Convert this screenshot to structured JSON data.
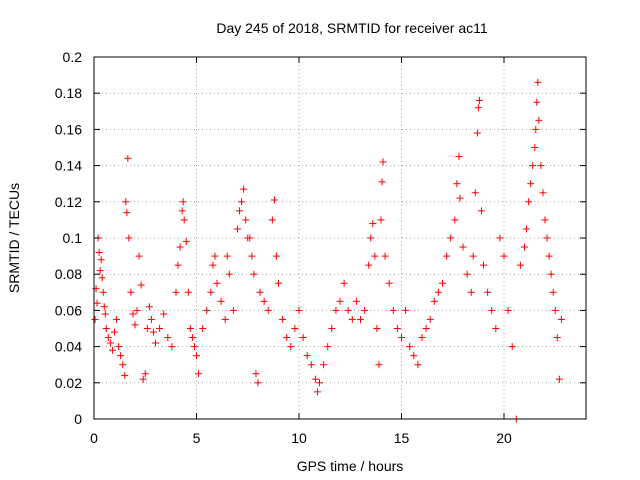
{
  "chart_data": {
    "type": "scatter",
    "title": "Day 245 of 2018, SRMTID for receiver ac11",
    "xlabel": "GPS time / hours",
    "ylabel": "SRMTID / TECUs",
    "xlim": [
      0,
      24
    ],
    "ylim": [
      0,
      0.2
    ],
    "x_ticks": [
      0,
      5,
      10,
      15,
      20
    ],
    "x_tick_labels": [
      "0",
      "5",
      "10",
      "15",
      "20"
    ],
    "y_ticks": [
      0,
      0.02,
      0.04,
      0.06,
      0.08,
      0.1,
      0.12,
      0.14,
      0.16,
      0.18,
      0.2
    ],
    "y_tick_labels": [
      "0",
      "0.02",
      "0.04",
      "0.06",
      "0.08",
      "0.1",
      "0.12",
      "0.14",
      "0.16",
      "0.18",
      "0.2"
    ],
    "grid": true,
    "marker": "plus",
    "marker_color": "#ff0000",
    "series": [
      {
        "name": "SRMTID",
        "points": [
          [
            0.05,
            0.055
          ],
          [
            0.1,
            0.072
          ],
          [
            0.15,
            0.064
          ],
          [
            0.2,
            0.1
          ],
          [
            0.25,
            0.092
          ],
          [
            0.3,
            0.082
          ],
          [
            0.35,
            0.088
          ],
          [
            0.4,
            0.078
          ],
          [
            0.45,
            0.07
          ],
          [
            0.5,
            0.062
          ],
          [
            0.55,
            0.058
          ],
          [
            0.6,
            0.05
          ],
          [
            0.7,
            0.045
          ],
          [
            0.8,
            0.042
          ],
          [
            0.9,
            0.038
          ],
          [
            1.0,
            0.048
          ],
          [
            1.1,
            0.055
          ],
          [
            1.2,
            0.04
          ],
          [
            1.3,
            0.035
          ],
          [
            1.4,
            0.03
          ],
          [
            1.5,
            0.024
          ],
          [
            1.55,
            0.12
          ],
          [
            1.6,
            0.114
          ],
          [
            1.65,
            0.144
          ],
          [
            1.7,
            0.1
          ],
          [
            1.8,
            0.07
          ],
          [
            1.9,
            0.058
          ],
          [
            2.0,
            0.052
          ],
          [
            2.1,
            0.06
          ],
          [
            2.2,
            0.09
          ],
          [
            2.3,
            0.074
          ],
          [
            2.4,
            0.022
          ],
          [
            2.5,
            0.025
          ],
          [
            2.6,
            0.05
          ],
          [
            2.7,
            0.062
          ],
          [
            2.8,
            0.055
          ],
          [
            2.9,
            0.048
          ],
          [
            3.0,
            0.042
          ],
          [
            3.2,
            0.05
          ],
          [
            3.4,
            0.058
          ],
          [
            3.6,
            0.045
          ],
          [
            3.8,
            0.04
          ],
          [
            4.0,
            0.07
          ],
          [
            4.1,
            0.085
          ],
          [
            4.2,
            0.095
          ],
          [
            4.3,
            0.115
          ],
          [
            4.35,
            0.12
          ],
          [
            4.4,
            0.11
          ],
          [
            4.5,
            0.098
          ],
          [
            4.6,
            0.07
          ],
          [
            4.7,
            0.05
          ],
          [
            4.8,
            0.045
          ],
          [
            4.9,
            0.04
          ],
          [
            5.0,
            0.035
          ],
          [
            5.1,
            0.025
          ],
          [
            5.3,
            0.05
          ],
          [
            5.5,
            0.06
          ],
          [
            5.7,
            0.07
          ],
          [
            5.8,
            0.085
          ],
          [
            5.9,
            0.09
          ],
          [
            6.0,
            0.075
          ],
          [
            6.2,
            0.065
          ],
          [
            6.4,
            0.055
          ],
          [
            6.5,
            0.09
          ],
          [
            6.6,
            0.08
          ],
          [
            6.8,
            0.06
          ],
          [
            7.0,
            0.105
          ],
          [
            7.1,
            0.115
          ],
          [
            7.2,
            0.12
          ],
          [
            7.3,
            0.127
          ],
          [
            7.4,
            0.11
          ],
          [
            7.5,
            0.1
          ],
          [
            7.6,
            0.1
          ],
          [
            7.7,
            0.09
          ],
          [
            7.8,
            0.08
          ],
          [
            7.9,
            0.025
          ],
          [
            8.0,
            0.02
          ],
          [
            8.1,
            0.07
          ],
          [
            8.3,
            0.065
          ],
          [
            8.5,
            0.06
          ],
          [
            8.7,
            0.11
          ],
          [
            8.8,
            0.121
          ],
          [
            8.9,
            0.09
          ],
          [
            9.0,
            0.075
          ],
          [
            9.2,
            0.055
          ],
          [
            9.4,
            0.045
          ],
          [
            9.6,
            0.04
          ],
          [
            9.8,
            0.05
          ],
          [
            10.0,
            0.06
          ],
          [
            10.2,
            0.045
          ],
          [
            10.4,
            0.035
          ],
          [
            10.6,
            0.03
          ],
          [
            10.8,
            0.022
          ],
          [
            10.9,
            0.015
          ],
          [
            11.0,
            0.02
          ],
          [
            11.2,
            0.03
          ],
          [
            11.4,
            0.04
          ],
          [
            11.6,
            0.05
          ],
          [
            11.8,
            0.06
          ],
          [
            12.0,
            0.065
          ],
          [
            12.2,
            0.075
          ],
          [
            12.4,
            0.06
          ],
          [
            12.6,
            0.055
          ],
          [
            12.8,
            0.065
          ],
          [
            13.0,
            0.055
          ],
          [
            13.2,
            0.06
          ],
          [
            13.4,
            0.085
          ],
          [
            13.5,
            0.1
          ],
          [
            13.6,
            0.108
          ],
          [
            13.7,
            0.09
          ],
          [
            13.8,
            0.05
          ],
          [
            13.9,
            0.03
          ],
          [
            14.0,
            0.11
          ],
          [
            14.05,
            0.131
          ],
          [
            14.1,
            0.142
          ],
          [
            14.2,
            0.09
          ],
          [
            14.4,
            0.075
          ],
          [
            14.6,
            0.06
          ],
          [
            14.8,
            0.05
          ],
          [
            15.0,
            0.045
          ],
          [
            15.2,
            0.06
          ],
          [
            15.4,
            0.04
          ],
          [
            15.6,
            0.035
          ],
          [
            15.8,
            0.03
          ],
          [
            16.0,
            0.045
          ],
          [
            16.2,
            0.05
          ],
          [
            16.4,
            0.055
          ],
          [
            16.6,
            0.065
          ],
          [
            16.8,
            0.07
          ],
          [
            17.0,
            0.075
          ],
          [
            17.2,
            0.09
          ],
          [
            17.4,
            0.1
          ],
          [
            17.6,
            0.11
          ],
          [
            17.7,
            0.13
          ],
          [
            17.8,
            0.145
          ],
          [
            17.85,
            0.122
          ],
          [
            18.0,
            0.095
          ],
          [
            18.2,
            0.08
          ],
          [
            18.4,
            0.07
          ],
          [
            18.5,
            0.09
          ],
          [
            18.6,
            0.125
          ],
          [
            18.7,
            0.158
          ],
          [
            18.75,
            0.172
          ],
          [
            18.8,
            0.176
          ],
          [
            18.9,
            0.115
          ],
          [
            19.0,
            0.085
          ],
          [
            19.2,
            0.07
          ],
          [
            19.4,
            0.06
          ],
          [
            19.6,
            0.05
          ],
          [
            19.8,
            0.1
          ],
          [
            20.0,
            0.09
          ],
          [
            20.2,
            0.06
          ],
          [
            20.4,
            0.04
          ],
          [
            20.6,
            0.0
          ],
          [
            20.8,
            0.085
          ],
          [
            21.0,
            0.095
          ],
          [
            21.1,
            0.105
          ],
          [
            21.2,
            0.12
          ],
          [
            21.3,
            0.13
          ],
          [
            21.4,
            0.14
          ],
          [
            21.5,
            0.15
          ],
          [
            21.55,
            0.16
          ],
          [
            21.6,
            0.175
          ],
          [
            21.65,
            0.186
          ],
          [
            21.7,
            0.165
          ],
          [
            21.8,
            0.14
          ],
          [
            21.9,
            0.125
          ],
          [
            22.0,
            0.11
          ],
          [
            22.1,
            0.1
          ],
          [
            22.2,
            0.09
          ],
          [
            22.3,
            0.08
          ],
          [
            22.4,
            0.07
          ],
          [
            22.5,
            0.06
          ],
          [
            22.6,
            0.045
          ],
          [
            22.7,
            0.022
          ],
          [
            22.8,
            0.055
          ]
        ]
      }
    ]
  }
}
